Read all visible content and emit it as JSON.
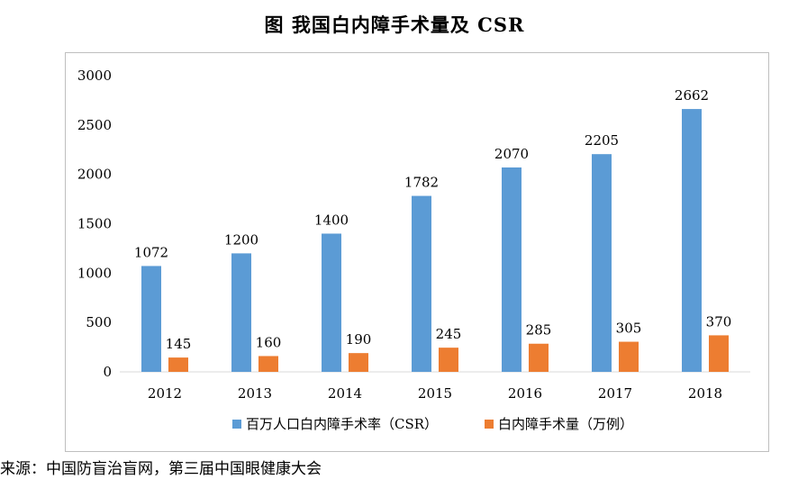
{
  "figure": {
    "title": "图  我国白内障手术量及 CSR",
    "source": "来源：中国防盲治盲网，第三届中国眼健康大会"
  },
  "colors": {
    "csr": "#5b9bd5",
    "surgeries": "#ed7d31",
    "frame": "#bfbfbf",
    "axis": "#d9d9d9"
  },
  "chart_data": {
    "type": "bar",
    "title": "图  我国白内障手术量及 CSR",
    "categories": [
      "2012",
      "2013",
      "2014",
      "2015",
      "2016",
      "2017",
      "2018"
    ],
    "series": [
      {
        "name": "百万人口白内障手术率（CSR）",
        "values": [
          1072,
          1200,
          1400,
          1782,
          2070,
          2205,
          2662
        ],
        "data_labels": [
          "1072",
          "1200",
          "1400",
          "1782",
          "2070",
          "2205",
          "2662"
        ]
      },
      {
        "name": "白内障手术量（万例）",
        "values": [
          145,
          160,
          190,
          245,
          285,
          305,
          370
        ],
        "data_labels": [
          "145",
          "160",
          "190",
          "245",
          "285",
          "305",
          "370"
        ]
      }
    ],
    "ylim": [
      0,
      3000
    ],
    "yticks": [
      "0",
      "500",
      "1000",
      "1500",
      "2000",
      "2500",
      "3000"
    ],
    "grid": false,
    "legend_position": "bottom"
  }
}
